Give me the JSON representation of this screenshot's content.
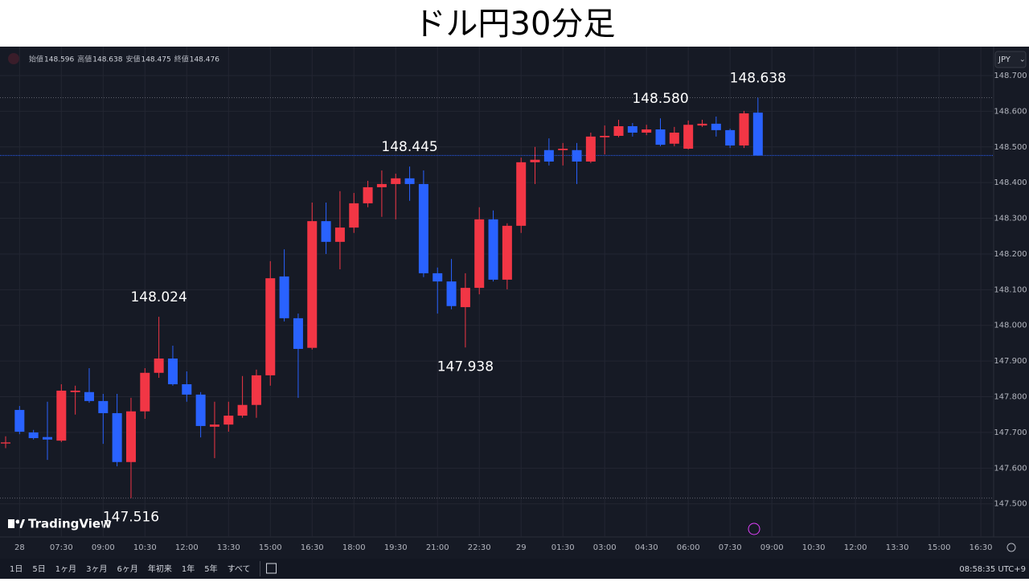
{
  "header": {
    "title": "ドル円30分足"
  },
  "chart_data": {
    "type": "candlestick",
    "symbol_currency": "JPY",
    "brand": "TradingView",
    "ohlc_labels": [
      "始値",
      "高値",
      "安値",
      "終値"
    ],
    "up_color": "#f23645",
    "down_color": "#2962ff",
    "categories": [
      null,
      "28",
      null,
      null,
      "07:30",
      null,
      null,
      "09:00",
      null,
      null,
      "10:30",
      null,
      null,
      "12:00",
      null,
      null,
      "13:30",
      null,
      null,
      "15:00",
      null,
      null,
      "16:30",
      null,
      null,
      "18:00",
      null,
      null,
      "19:30",
      null,
      null,
      "21:00",
      null,
      null,
      "22:30",
      null,
      null,
      "29",
      null,
      null,
      "01:30",
      null,
      null,
      "03:00",
      null,
      null,
      "04:30",
      null,
      null,
      "06:00",
      null,
      null,
      "07:30",
      null,
      null,
      "09:00",
      null,
      null,
      "10:30",
      null,
      null,
      "12:00",
      null,
      null,
      "13:30",
      null,
      null,
      "15:00",
      null,
      null,
      "16:30",
      null
    ],
    "open": [
      147.669,
      147.763,
      147.7,
      147.687,
      147.677,
      147.813,
      147.813,
      147.788,
      147.754,
      147.617,
      147.759,
      147.867,
      147.907,
      147.835,
      147.806,
      147.716,
      147.722,
      147.747,
      147.777,
      147.86,
      148.137,
      148.02,
      147.937,
      148.292,
      148.234,
      148.274,
      148.342,
      148.387,
      148.396,
      148.412,
      148.396,
      148.146,
      148.123,
      148.051,
      148.105,
      148.297,
      148.128,
      148.279,
      148.457,
      148.491,
      148.491,
      148.491,
      148.459,
      148.527,
      148.531,
      148.558,
      148.54,
      148.549,
      148.509,
      148.495,
      148.56,
      148.565,
      148.547,
      148.504,
      148.596,
      null,
      null,
      null,
      null,
      null,
      null,
      null,
      null,
      null,
      null,
      null,
      null,
      null,
      null,
      null,
      null,
      null
    ],
    "high": [
      147.689,
      147.774,
      147.707,
      147.786,
      147.835,
      147.831,
      147.88,
      147.808,
      147.808,
      147.797,
      147.88,
      148.024,
      147.943,
      147.871,
      147.813,
      147.786,
      147.786,
      147.858,
      147.876,
      148.18,
      148.213,
      148.033,
      148.344,
      148.344,
      148.376,
      148.371,
      148.405,
      148.434,
      148.425,
      148.445,
      148.434,
      148.162,
      148.186,
      148.146,
      148.331,
      148.322,
      148.286,
      148.47,
      148.5,
      148.524,
      148.511,
      148.511,
      148.54,
      148.56,
      148.576,
      148.567,
      148.562,
      148.58,
      148.556,
      148.574,
      148.576,
      148.585,
      148.551,
      148.601,
      148.638,
      null,
      null,
      null,
      null,
      null,
      null,
      null,
      null,
      null,
      null,
      null,
      null,
      null,
      null,
      null,
      null,
      null
    ],
    "low": [
      147.656,
      147.695,
      147.68,
      147.623,
      147.673,
      147.75,
      147.783,
      147.668,
      147.605,
      147.516,
      147.738,
      147.853,
      147.831,
      147.786,
      147.686,
      147.628,
      147.702,
      147.741,
      147.741,
      147.831,
      148.011,
      147.797,
      147.932,
      148.2,
      148.157,
      148.259,
      148.331,
      148.304,
      148.297,
      148.349,
      148.135,
      148.033,
      148.045,
      147.938,
      148.087,
      148.123,
      148.101,
      148.259,
      148.396,
      148.448,
      148.448,
      148.396,
      148.455,
      148.479,
      148.527,
      148.529,
      148.533,
      148.502,
      148.502,
      148.493,
      148.556,
      148.529,
      148.497,
      148.497,
      148.475,
      null,
      null,
      null,
      null,
      null,
      null,
      null,
      null,
      null,
      null,
      null,
      null,
      null,
      null,
      null,
      null,
      null
    ],
    "close": [
      147.672,
      147.702,
      147.684,
      147.68,
      147.817,
      147.817,
      147.788,
      147.754,
      147.617,
      147.759,
      147.867,
      147.907,
      147.835,
      147.806,
      147.718,
      147.722,
      147.747,
      147.777,
      147.86,
      148.132,
      148.02,
      147.934,
      148.292,
      148.234,
      148.274,
      148.342,
      148.387,
      148.396,
      148.412,
      148.396,
      148.146,
      148.123,
      148.054,
      148.105,
      148.297,
      148.128,
      148.279,
      148.457,
      148.464,
      148.459,
      148.495,
      148.459,
      148.529,
      148.531,
      148.558,
      148.54,
      148.549,
      148.506,
      148.54,
      148.562,
      148.565,
      148.547,
      148.504,
      148.594,
      148.476,
      null,
      null,
      null,
      null,
      null,
      null,
      null,
      null,
      null,
      null,
      null,
      null,
      null,
      null,
      null,
      null,
      null
    ],
    "annotations": [
      {
        "value": 148.638,
        "label": "148.638"
      },
      {
        "value": 148.58,
        "label": "148.580"
      },
      {
        "value": 148.445,
        "label": "148.445"
      },
      {
        "value": 148.024,
        "label": "148.024"
      },
      {
        "value": 147.938,
        "label": "147.938"
      },
      {
        "value": 147.516,
        "label": "147.516"
      }
    ],
    "ylim": [
      147.407,
      148.772
    ],
    "yticks": [
      {
        "value": 148.7,
        "label": "148.700"
      },
      {
        "value": 148.6,
        "label": "148.600"
      },
      {
        "value": 148.5,
        "label": "148.500"
      },
      {
        "value": 148.4,
        "label": "148.400"
      },
      {
        "value": 148.3,
        "label": "148.300"
      },
      {
        "value": 148.2,
        "label": "148.200"
      },
      {
        "value": 148.1,
        "label": "148.100"
      },
      {
        "value": 148.0,
        "label": "148.000"
      },
      {
        "value": 147.9,
        "label": "147.900"
      },
      {
        "value": 147.8,
        "label": "147.800"
      },
      {
        "value": 147.7,
        "label": "147.700"
      },
      {
        "value": 147.6,
        "label": "147.600"
      },
      {
        "value": 147.5,
        "label": "147.500"
      }
    ],
    "grid": true
  },
  "toolbar": {
    "ranges": [
      "1日",
      "5日",
      "1ヶ月",
      "3ヶ月",
      "6ヶ月",
      "年初来",
      "1年",
      "5年",
      "すべて"
    ],
    "clock": "08:58:35 UTC+9"
  }
}
